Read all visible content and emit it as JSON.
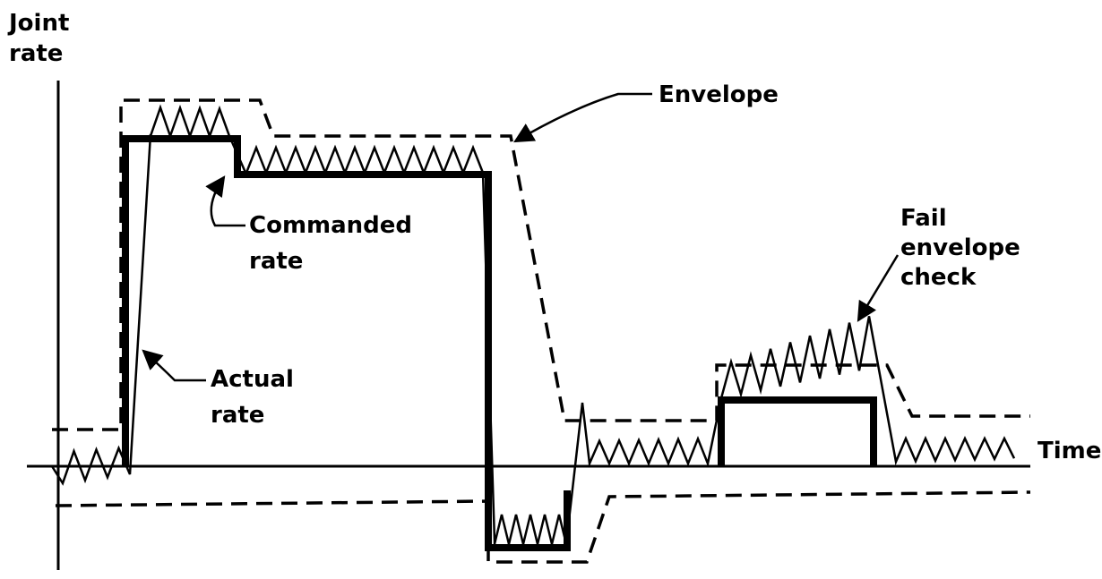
{
  "y_axis_label": [
    "Joint",
    "rate"
  ],
  "x_axis_label": "Time",
  "annotations": {
    "envelope": [
      "Envelope"
    ],
    "commanded": [
      "Commanded",
      "rate"
    ],
    "actual": [
      "Actual",
      "rate"
    ],
    "fail": [
      "Fail",
      "envelope",
      "check"
    ]
  }
}
